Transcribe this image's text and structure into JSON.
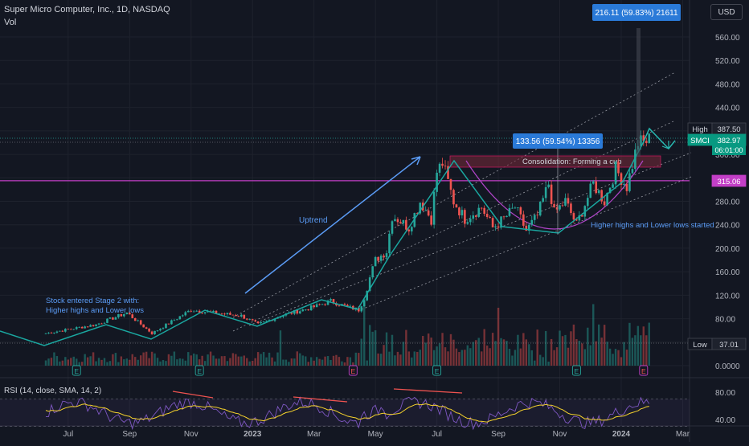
{
  "header": {
    "title": "Super Micro Computer, Inc., 1D, NASDAQ",
    "vol_label": "Vol",
    "currency": "USD"
  },
  "rsi_label": "RSI (14, close, SMA, 14, 2)",
  "colors": {
    "background": "#131722",
    "up": "#26a69a",
    "down": "#ef5350",
    "magenta": "#c33fc7",
    "measure_blue": "#2a7ad8",
    "rsi_line": "#7e57c2",
    "rsi_sma": "#f6d32c",
    "rect_fill": "#7a2a3a",
    "arrow_blue": "#5b9cf6",
    "teal_path": "#1aa7a0"
  },
  "chart_data": {
    "type": "candlestick",
    "symbol": "SMCI",
    "interval": "1D",
    "exchange": "NASDAQ",
    "y_axis": {
      "ticks": [
        560,
        520,
        480,
        440,
        400,
        360,
        320,
        280,
        240,
        200,
        160,
        120,
        80,
        40,
        0
      ],
      "tick_labels": [
        "560.00",
        "520.00",
        "480.00",
        "440.00",
        "400.00",
        "360.00",
        "320.00",
        "280.00",
        "240.00",
        "200.00",
        "160.00",
        "120.00",
        "80.00",
        "40.00",
        "0.0000"
      ]
    },
    "x_axis": {
      "labels": [
        "Jul",
        "Sep",
        "Nov",
        "2023",
        "Mar",
        "May",
        "Jul",
        "Sep",
        "Nov",
        "2024",
        "Mar"
      ],
      "label_index": [
        8,
        30,
        52,
        74,
        96,
        118,
        140,
        162,
        184,
        206,
        228
      ]
    },
    "price_labels": [
      {
        "label": "High",
        "value": "387.50"
      },
      {
        "label": "SMCI",
        "value": "382.97",
        "countdown": "06:01:00"
      },
      {
        "label": "",
        "value": "315.06"
      },
      {
        "label": "Low",
        "value": "37.01"
      }
    ],
    "measurements": [
      {
        "text": "216.11 (59.83%) 21611"
      },
      {
        "text": "133.56 (59.54%) 13356"
      }
    ],
    "annotations": [
      {
        "text": "Consolidation:  Forming a cup"
      },
      {
        "text": "Uptrend"
      },
      {
        "text": "Higher highs and Lower lows started"
      },
      {
        "text": "Stock entered Stage 2 with:"
      },
      {
        "text": "Higher highs and Lower lows"
      }
    ],
    "horizontal_line_value": 315.06,
    "candles_anchor_index": [
      0,
      18,
      29,
      38,
      52,
      60,
      70,
      76,
      84,
      96,
      102,
      108,
      112,
      114,
      116,
      118,
      122,
      124,
      126,
      130,
      134,
      138,
      140,
      142,
      146,
      150,
      156,
      160,
      164,
      168,
      172,
      176,
      180,
      182,
      186,
      190,
      196,
      200,
      204,
      208,
      212,
      214,
      216
    ],
    "candles_anchor_close": [
      55,
      70,
      90,
      55,
      95,
      90,
      85,
      70,
      85,
      100,
      110,
      100,
      95,
      115,
      150,
      180,
      195,
      255,
      250,
      235,
      280,
      250,
      330,
      345,
      280,
      250,
      270,
      235,
      250,
      270,
      230,
      255,
      310,
      260,
      280,
      240,
      310,
      280,
      335,
      305,
      380,
      380,
      385
    ],
    "earnings_markers_index": [
      11,
      55,
      110,
      140,
      190,
      214
    ],
    "rsi": {
      "ticks": [
        80,
        40
      ],
      "tick_labels": [
        "80.00",
        "40.00"
      ]
    }
  }
}
